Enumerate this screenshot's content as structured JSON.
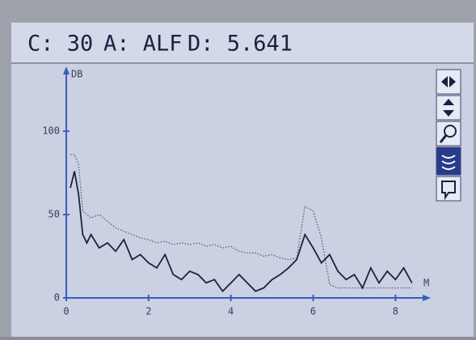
{
  "header": {
    "channel": "C: 30",
    "algorithm": "A: ALF",
    "distance": "D: 5.641"
  },
  "chart_data": {
    "type": "line",
    "y_label": "DB",
    "x_label": "M",
    "x": [
      0.1,
      0.2,
      0.3,
      0.4,
      0.5,
      0.6,
      0.8,
      1.0,
      1.2,
      1.4,
      1.6,
      1.8,
      2.0,
      2.2,
      2.4,
      2.6,
      2.8,
      3.0,
      3.2,
      3.4,
      3.6,
      3.8,
      4.0,
      4.2,
      4.4,
      4.6,
      4.8,
      5.0,
      5.2,
      5.4,
      5.6,
      5.8,
      6.0,
      6.2,
      6.4,
      6.6,
      6.8,
      7.0,
      7.2,
      7.4,
      7.6,
      7.8,
      8.0,
      8.2,
      8.4
    ],
    "series": [
      {
        "color": "#1c2140",
        "style": "solid",
        "values": [
          66,
          76,
          62,
          38,
          33,
          38,
          30,
          33,
          28,
          35,
          23,
          26,
          21,
          18,
          26,
          14,
          11,
          16,
          14,
          9,
          11,
          4,
          9,
          14,
          9,
          4,
          6,
          11,
          14,
          18,
          23,
          38,
          30,
          21,
          26,
          16,
          11,
          14,
          6,
          18,
          9,
          16,
          11,
          18,
          9
        ]
      },
      {
        "color": "#5e6478",
        "style": "dotted",
        "values": [
          86,
          86,
          80,
          52,
          50,
          48,
          50,
          46,
          42,
          40,
          38,
          36,
          35,
          33,
          34,
          32,
          33,
          32,
          33,
          31,
          32,
          30,
          31,
          28,
          27,
          27,
          25,
          26,
          24,
          23,
          24,
          55,
          52,
          36,
          8,
          6,
          6,
          6,
          6,
          6,
          6,
          6,
          6,
          6,
          6
        ]
      }
    ],
    "xlim": [
      0,
      8.7
    ],
    "ylim": [
      0,
      135
    ],
    "xticks": [
      0,
      2,
      4,
      6,
      8
    ],
    "yticks": [
      0,
      50,
      100
    ],
    "axis_color": "#3a5cc0"
  }
}
